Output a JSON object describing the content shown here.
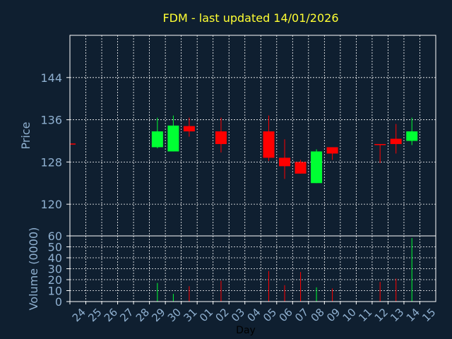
{
  "title": "FDM - last updated 14/01/2026",
  "colors": {
    "background": "#0f1f30",
    "title": "#ffff33",
    "axis_text": "#8fb0d0",
    "axis_line": "#ffffff",
    "grid": "#ffffff",
    "up": "#00ff33",
    "down": "#ff0000"
  },
  "chart_data": [
    {
      "type": "candlestick",
      "ylabel": "Price",
      "ylim": [
        114,
        152
      ],
      "yticks": [
        120,
        128,
        136,
        144
      ],
      "grid": true,
      "categories": [
        "24",
        "25",
        "26",
        "27",
        "28",
        "29",
        "30",
        "31",
        "01",
        "02",
        "03",
        "04",
        "05",
        "06",
        "07",
        "08",
        "09",
        "10",
        "11",
        "12",
        "13",
        "14",
        "15"
      ],
      "candles": [
        {
          "x": "24",
          "open": 131.4,
          "close": 131.4,
          "high": 131.4,
          "low": 131.4,
          "partial": true
        },
        {
          "x": "29",
          "open": 130.8,
          "close": 133.8,
          "high": 136.4,
          "low": 130.6
        },
        {
          "x": "30",
          "open": 130.0,
          "close": 134.9,
          "high": 136.8,
          "low": 130.0
        },
        {
          "x": "31",
          "open": 134.8,
          "close": 133.8,
          "high": 136.4,
          "low": 132.8
        },
        {
          "x": "02",
          "open": 133.8,
          "close": 131.4,
          "high": 136.4,
          "low": 129.8
        },
        {
          "x": "05",
          "open": 133.8,
          "close": 128.8,
          "high": 136.8,
          "low": 128.2
        },
        {
          "x": "06",
          "open": 128.8,
          "close": 127.2,
          "high": 132.3,
          "low": 124.8
        },
        {
          "x": "07",
          "open": 128.0,
          "close": 125.8,
          "high": 128.4,
          "low": 125.8
        },
        {
          "x": "08",
          "open": 124.0,
          "close": 130.0,
          "high": 130.4,
          "low": 124.0
        },
        {
          "x": "09",
          "open": 130.8,
          "close": 129.6,
          "high": 130.8,
          "low": 128.4
        },
        {
          "x": "12",
          "open": 131.4,
          "close": 131.2,
          "high": 131.4,
          "low": 127.8
        },
        {
          "x": "13",
          "open": 132.4,
          "close": 131.4,
          "high": 135.2,
          "low": 129.6
        },
        {
          "x": "14",
          "open": 132.0,
          "close": 133.8,
          "high": 136.4,
          "low": 131.2
        }
      ]
    },
    {
      "type": "bar",
      "ylabel": "Volume (0000)",
      "xlabel": "Day",
      "ylim": [
        0,
        60
      ],
      "yticks": [
        0,
        10,
        20,
        30,
        40,
        50,
        60
      ],
      "grid": true,
      "categories": [
        "24",
        "25",
        "26",
        "27",
        "28",
        "29",
        "30",
        "31",
        "01",
        "02",
        "03",
        "04",
        "05",
        "06",
        "07",
        "08",
        "09",
        "10",
        "11",
        "12",
        "13",
        "14",
        "15"
      ],
      "bars": [
        {
          "x": "29",
          "value": 17,
          "direction": "up"
        },
        {
          "x": "30",
          "value": 7,
          "direction": "up"
        },
        {
          "x": "31",
          "value": 14,
          "direction": "down"
        },
        {
          "x": "02",
          "value": 19,
          "direction": "down"
        },
        {
          "x": "05",
          "value": 28,
          "direction": "down"
        },
        {
          "x": "06",
          "value": 15,
          "direction": "down"
        },
        {
          "x": "07",
          "value": 27,
          "direction": "down"
        },
        {
          "x": "08",
          "value": 13,
          "direction": "up"
        },
        {
          "x": "09",
          "value": 12,
          "direction": "down"
        },
        {
          "x": "12",
          "value": 18,
          "direction": "down"
        },
        {
          "x": "13",
          "value": 21,
          "direction": "down"
        },
        {
          "x": "14",
          "value": 58,
          "direction": "up"
        }
      ]
    }
  ]
}
